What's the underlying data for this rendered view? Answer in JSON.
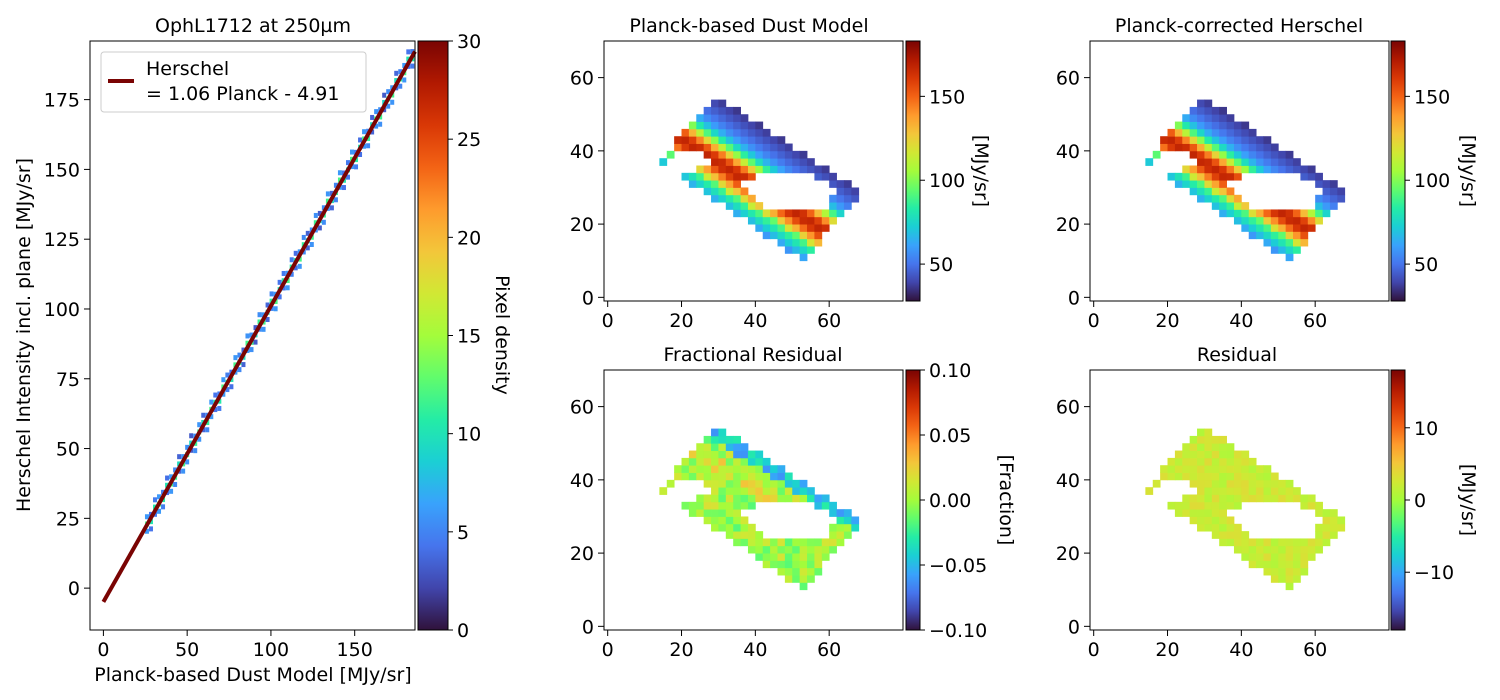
{
  "colormap": "turbo",
  "charts": {
    "scatter": {
      "type": "heatmap",
      "title": "OphL1712 at 250µm",
      "xlabel": "Planck-based Dust Model [MJy/sr]",
      "ylabel": "Herschel Intensity incl. plane [MJy/sr]",
      "xlim": [
        -8,
        186
      ],
      "ylim": [
        -15,
        196
      ],
      "x_ticks": [
        0,
        50,
        100,
        150
      ],
      "y_ticks": [
        0,
        25,
        50,
        75,
        100,
        125,
        150,
        175
      ],
      "x_tick_labels": [
        "0",
        "50",
        "100",
        "150"
      ],
      "y_tick_labels": [
        "0",
        "25",
        "50",
        "75",
        "100",
        "125",
        "150",
        "175"
      ],
      "fit": {
        "slope": 1.06,
        "intercept": -4.91,
        "x_range": [
          0,
          186
        ],
        "color": "#7a0403"
      },
      "legend": {
        "line1": "Herschel",
        "line2": "= 1.06 Planck - 4.91",
        "placement": "upper-left"
      },
      "density_x_range": [
        26,
        186
      ],
      "colorbar": {
        "label": "Pixel density",
        "range": [
          0,
          30
        ],
        "ticks": [
          0,
          5,
          10,
          15,
          20,
          25,
          30
        ],
        "tick_labels": [
          "0",
          "5",
          "10",
          "15",
          "20",
          "25",
          "30"
        ]
      }
    },
    "dust_model": {
      "type": "heatmap",
      "title": "Planck-based Dust Model",
      "xlim": [
        -1,
        80
      ],
      "ylim": [
        -1,
        70
      ],
      "x_ticks": [
        0,
        20,
        40,
        60
      ],
      "y_ticks": [
        0,
        20,
        40,
        60
      ],
      "x_tick_labels": [
        "0",
        "20",
        "40",
        "60"
      ],
      "y_tick_labels": [
        "0",
        "20",
        "40",
        "60"
      ],
      "colorbar": {
        "label": "[MJy/sr]",
        "range": [
          28,
          183
        ],
        "ticks": [
          50,
          100,
          150
        ],
        "tick_labels": [
          "50",
          "100",
          "150"
        ]
      }
    },
    "corrected": {
      "type": "heatmap",
      "title": "Planck-corrected Herschel",
      "xlim": [
        -1,
        80
      ],
      "ylim": [
        -1,
        70
      ],
      "x_ticks": [
        0,
        20,
        40,
        60
      ],
      "y_ticks": [
        0,
        20,
        40,
        60
      ],
      "x_tick_labels": [
        "0",
        "20",
        "40",
        "60"
      ],
      "y_tick_labels": [
        "0",
        "20",
        "40",
        "60"
      ],
      "colorbar": {
        "label": "[MJy/sr]",
        "range": [
          28,
          183
        ],
        "ticks": [
          50,
          100,
          150
        ],
        "tick_labels": [
          "50",
          "100",
          "150"
        ]
      }
    },
    "frac_residual": {
      "type": "heatmap",
      "title": "Fractional Residual",
      "xlim": [
        -1,
        80
      ],
      "ylim": [
        -1,
        70
      ],
      "x_ticks": [
        0,
        20,
        40,
        60
      ],
      "y_ticks": [
        0,
        20,
        40,
        60
      ],
      "x_tick_labels": [
        "0",
        "20",
        "40",
        "60"
      ],
      "y_tick_labels": [
        "0",
        "20",
        "40",
        "60"
      ],
      "colorbar": {
        "label": "[Fraction]",
        "range": [
          -0.1,
          0.1
        ],
        "ticks": [
          -0.1,
          -0.05,
          0,
          0.05,
          0.1
        ],
        "tick_labels": [
          "−0.10",
          "−0.05",
          "0.00",
          "0.05",
          "0.10"
        ]
      }
    },
    "residual": {
      "type": "heatmap",
      "title": "Residual",
      "xlim": [
        -1,
        80
      ],
      "ylim": [
        -1,
        70
      ],
      "x_ticks": [
        0,
        20,
        40,
        60
      ],
      "y_ticks": [
        0,
        20,
        40,
        60
      ],
      "x_tick_labels": [
        "0",
        "20",
        "40",
        "60"
      ],
      "y_tick_labels": [
        "0",
        "20",
        "40",
        "60"
      ],
      "colorbar": {
        "label": "[MJy/sr]",
        "range": [
          -18,
          18
        ],
        "ticks": [
          -10,
          0,
          10
        ],
        "tick_labels": [
          "−10",
          "0",
          "10"
        ]
      }
    }
  },
  "region": {
    "corners": [
      [
        14,
        37
      ],
      [
        29,
        55
      ],
      [
        69,
        29
      ],
      [
        53,
        10
      ]
    ],
    "holes": [
      [
        [
          17,
          38
        ],
        [
          22,
          41
        ],
        [
          26,
          39
        ],
        [
          28,
          36
        ],
        [
          22,
          34
        ],
        [
          17,
          35
        ]
      ],
      [
        [
          36,
          32
        ],
        [
          46,
          34
        ],
        [
          56,
          33
        ],
        [
          62,
          30
        ],
        [
          60,
          25
        ],
        [
          52,
          23
        ],
        [
          44,
          24
        ],
        [
          38,
          28
        ]
      ]
    ]
  }
}
